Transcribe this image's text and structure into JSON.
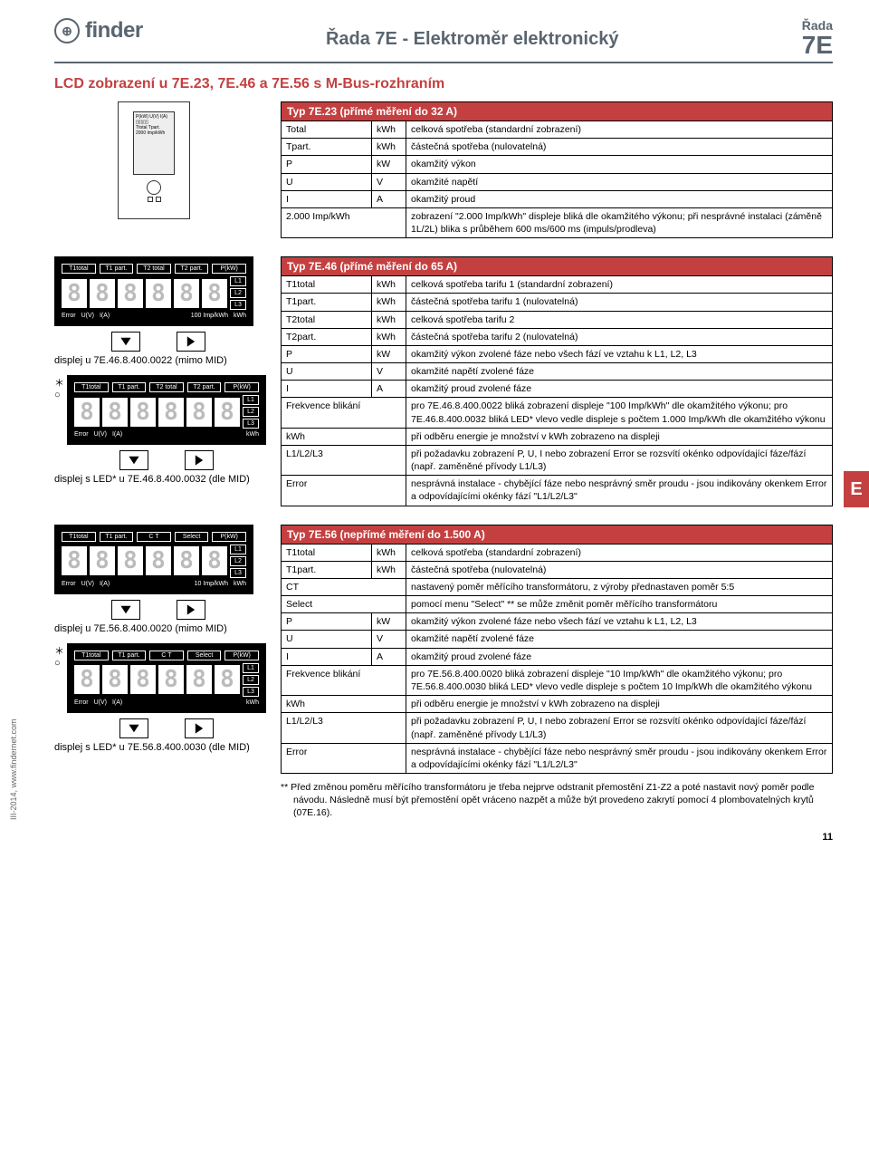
{
  "brand": "finder",
  "header": {
    "title": "Řada 7E - Elektroměr elektronický",
    "rada": "Řada",
    "model": "7E"
  },
  "section_title": "LCD zobrazení u 7E.23, 7E.46 a 7E.56 s M-Bus-rozhraním",
  "side_tab": "E",
  "page_number": "11",
  "footer_left": "III-2014, www.findernet.com",
  "tables": {
    "t723": {
      "title": "Typ 7E.23 (přímé měření do 32 A)",
      "rows": [
        [
          "Total",
          "kWh",
          "celková spotřeba (standardní zobrazení)"
        ],
        [
          "Tpart.",
          "kWh",
          "částečná spotřeba (nulovatelná)"
        ],
        [
          "P",
          "kW",
          "okamžitý výkon"
        ],
        [
          "U",
          "V",
          "okamžité napětí"
        ],
        [
          "I",
          "A",
          "okamžitý proud"
        ],
        [
          "2.000 Imp/kWh",
          "",
          "zobrazení \"2.000 Imp/kWh\" displeje bliká dle okamžitého výkonu; při nesprávné instalaci (záměně 1L/2L) blika s průběhem 600 ms/600 ms (impuls/prodleva)"
        ]
      ]
    },
    "t746": {
      "title": "Typ 7E.46 (přímé měření do 65 A)",
      "rows": [
        [
          "T1total",
          "kWh",
          "celková spotřeba tarifu 1 (standardní zobrazení)"
        ],
        [
          "T1part.",
          "kWh",
          "částečná spotřeba tarifu 1 (nulovatelná)"
        ],
        [
          "T2total",
          "kWh",
          "celková spotřeba tarifu 2"
        ],
        [
          "T2part.",
          "kWh",
          "částečná spotřeba tarifu 2 (nulovatelná)"
        ],
        [
          "P",
          "kW",
          "okamžitý výkon zvolené fáze nebo všech fází ve vztahu k L1, L2, L3"
        ],
        [
          "U",
          "V",
          "okamžité napětí zvolené fáze"
        ],
        [
          "I",
          "A",
          "okamžitý proud zvolené fáze"
        ],
        [
          "Frekvence blikání",
          "",
          "pro 7E.46.8.400.0022 bliká zobrazení displeje \"100 Imp/kWh\" dle okamžitého výkonu; pro 7E.46.8.400.0032 bliká LED* vlevo vedle displeje s počtem 1.000 Imp/kWh dle okamžitého výkonu"
        ],
        [
          "kWh",
          "",
          "při odběru energie je množství v kWh zobrazeno na displeji"
        ],
        [
          "L1/L2/L3",
          "",
          "při požadavku zobrazení P, U, I nebo zobrazení Error se rozsvítí okénko odpovídající fáze/fází (např. zaměněné přívody L1/L3)"
        ],
        [
          "Error",
          "",
          "nesprávná instalace - chybějící fáze nebo nesprávný směr proudu - jsou indikovány okenkem Error a odpovídajícími okénky fází \"L1/L2/L3\""
        ]
      ]
    },
    "t756": {
      "title": "Typ 7E.56 (nepřímé měření do 1.500 A)",
      "rows": [
        [
          "T1total",
          "kWh",
          "celková spotřeba (standardní zobrazení)"
        ],
        [
          "T1part.",
          "kWh",
          "částečná spotřeba (nulovatelná)"
        ],
        [
          "CT",
          "",
          "nastavený poměr měřícího transformátoru, z výroby přednastaven poměr 5:5"
        ],
        [
          "Select",
          "",
          "pomocí menu \"Select\" ** se může změnit poměr měřícího transformátoru"
        ],
        [
          "P",
          "kW",
          "okamžitý výkon zvolené fáze nebo všech fází ve vztahu k L1, L2, L3"
        ],
        [
          "U",
          "V",
          "okamžité napětí zvolené fáze"
        ],
        [
          "I",
          "A",
          "okamžitý proud zvolené fáze"
        ],
        [
          "Frekvence blikání",
          "",
          "pro 7E.56.8.400.0020 bliká zobrazení displeje \"10 Imp/kWh\" dle okamžitého výkonu; pro 7E.56.8.400.0030 bliká LED* vlevo vedle displeje s počtem 10 Imp/kWh dle okamžitého výkonu"
        ],
        [
          "kWh",
          "",
          "při odběru energie je množství v kWh zobrazeno na displeji"
        ],
        [
          "L1/L2/L3",
          "",
          "při požadavku zobrazení P, U, I nebo zobrazení Error se rozsvítí okénko odpovídající fáze/fází (např. zaměněné přívody L1/L3)"
        ],
        [
          "Error",
          "",
          "nesprávná instalace - chybějící fáze nebo nesprávný směr proudu - jsou indikovány okenkem Error a odpovídajícími okénky fází \"L1/L2/L3\""
        ]
      ]
    }
  },
  "displays": {
    "d746a": {
      "top": [
        "T1total",
        "T1 part.",
        "T2 total",
        "T2 part.",
        "P(kW)"
      ],
      "side": [
        "L1",
        "L2",
        "L3"
      ],
      "bottom": [
        "Error",
        "U(V)",
        "I(A)",
        "100 Imp/kWh",
        "kWh"
      ]
    },
    "d746b": {
      "top": [
        "T1total",
        "T1 part.",
        "T2 total",
        "T2 part.",
        "P(kW)"
      ],
      "side": [
        "L1",
        "L2",
        "L3"
      ],
      "bottom": [
        "Error",
        "U(V)",
        "I(A)",
        "",
        "kWh"
      ]
    },
    "d756a": {
      "top": [
        "T1total",
        "T1 part.",
        "C T",
        "Select",
        "P(kW)"
      ],
      "side": [
        "L1",
        "L2",
        "L3"
      ],
      "bottom": [
        "Error",
        "U(V)",
        "I(A)",
        "10 Imp/kWh",
        "kWh"
      ]
    },
    "d756b": {
      "top": [
        "T1total",
        "T1 part.",
        "C T",
        "Select",
        "P(kW)"
      ],
      "side": [
        "L1",
        "L2",
        "L3"
      ],
      "bottom": [
        "Error",
        "U(V)",
        "I(A)",
        "",
        "kWh"
      ]
    }
  },
  "captions": {
    "c746a": "displej u 7E.46.8.400.0022 (mimo MID)",
    "c746b": "displej s LED* u 7E.46.8.400.0032 (dle MID)",
    "c756a": "displej u 7E.56.8.400.0020 (mimo MID)",
    "c756b": "displej s LED* u 7E.56.8.400.0030 (dle MID)"
  },
  "footnote": "** Před změnou poměru měřícího transformátoru je třeba nejprve odstranit přemostění Z1-Z2 a poté nastavit nový poměr podle návodu. Následně musí být přemostění opět vráceno nazpět a může být provedeno zakrytí pomocí 4 plombovatelných krytů (07E.16)."
}
